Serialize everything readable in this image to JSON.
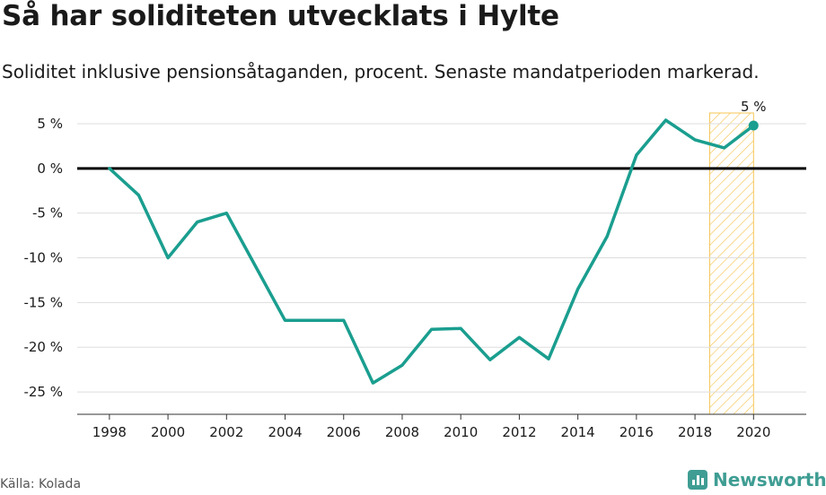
{
  "header": {
    "title": "Så har soliditeten utvecklats i Hylte",
    "subtitle": "Soliditet inklusive pensionsåtaganden, procent. Senaste mandatperioden markerad."
  },
  "footer": {
    "source": "Källa: Kolada",
    "brand": "Newsworthy"
  },
  "colors": {
    "line": "#1a9e8f",
    "zero_line": "#000000",
    "grid": "#dddddd",
    "highlight_stroke": "#f6c453",
    "brand": "#3f9d93"
  },
  "chart_data": {
    "type": "line",
    "x": [
      1998,
      1999,
      2000,
      2001,
      2002,
      2003,
      2004,
      2005,
      2006,
      2007,
      2008,
      2009,
      2010,
      2011,
      2012,
      2013,
      2014,
      2015,
      2016,
      2017,
      2018,
      2019,
      2020
    ],
    "series": [
      {
        "values": [
          0,
          -3,
          -10,
          -6,
          -5,
          -11,
          -17,
          -17,
          -17,
          -24,
          -22,
          -18,
          -17.9,
          -21.4,
          -18.9,
          -21.3,
          -13.5,
          -7.6,
          1.5,
          5.4,
          3.2,
          2.3,
          4.8
        ]
      }
    ],
    "yticks": [
      5,
      0,
      -5,
      -10,
      -15,
      -20,
      -25
    ],
    "ytick_labels": [
      "5 %",
      "0 %",
      "-5 %",
      "-10 %",
      "-15 %",
      "-20 %",
      "-25 %"
    ],
    "xticks": [
      1998,
      2000,
      2002,
      2004,
      2006,
      2008,
      2010,
      2012,
      2014,
      2016,
      2018,
      2020
    ],
    "xtick_labels": [
      "1998",
      "2000",
      "2002",
      "2004",
      "2006",
      "2008",
      "2010",
      "2012",
      "2014",
      "2016",
      "2018",
      "2020"
    ],
    "ylim": [
      -27.5,
      6.2
    ],
    "xlim": [
      1996.9,
      2021.8
    ],
    "highlight_range": [
      2018.5,
      2020
    ],
    "end_label": "5 %",
    "grid": true,
    "legend": "none"
  }
}
